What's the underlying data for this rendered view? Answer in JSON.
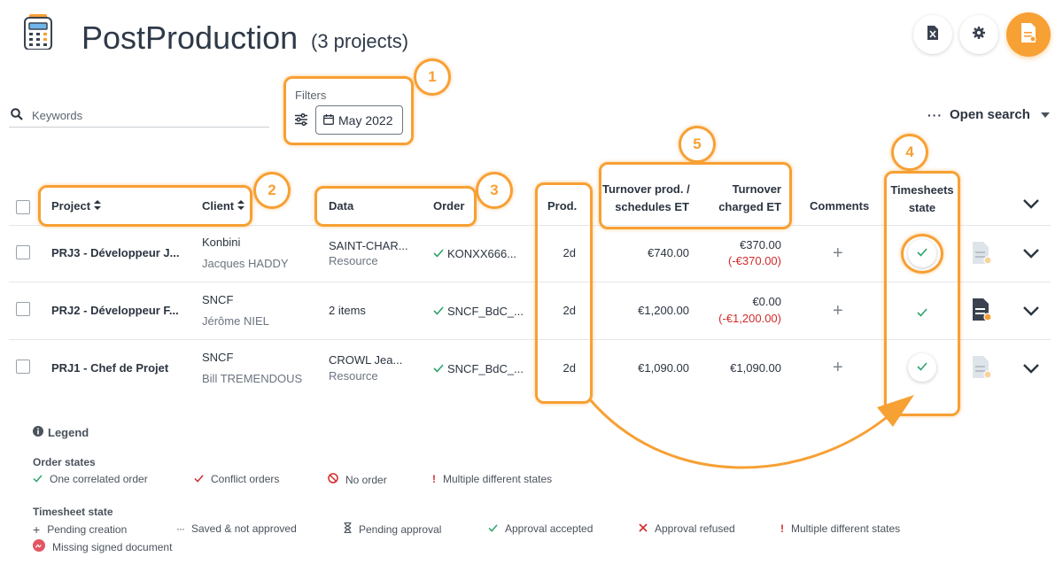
{
  "header": {
    "title": "PostProduction",
    "subtitle": "(3 projects)"
  },
  "toolbar": {
    "search_placeholder": "Keywords",
    "filters_label": "Filters",
    "date_filter": "May 2022",
    "open_search": "Open search"
  },
  "annotations": [
    "1",
    "2",
    "3",
    "4",
    "5"
  ],
  "table": {
    "columns": {
      "project": "Project",
      "client": "Client",
      "data": "Data",
      "order": "Order",
      "prod": "Prod.",
      "turnover_prod_1": "Turnover prod. /",
      "turnover_prod_2": "schedules ET",
      "turnover_charged_1": "Turnover",
      "turnover_charged_2": "charged ET",
      "comments": "Comments",
      "timesheets_1": "Timesheets",
      "timesheets_2": "state"
    },
    "rows": [
      {
        "project": "PRJ3 - Développeur J...",
        "client": "Konbini",
        "contact": "Jacques HADDY",
        "data_main": "SAINT-CHAR...",
        "data_sub": "Resource",
        "order": "KONXX666...",
        "prod": "2d",
        "turnover_prod": "€740.00",
        "charged": "€370.00",
        "charged_diff": "(-€370.00)"
      },
      {
        "project": "PRJ2 - Développeur F...",
        "client": "SNCF",
        "contact": "Jérôme NIEL",
        "data_main": "2 items",
        "data_sub": "",
        "order": "SNCF_BdC_...",
        "prod": "2d",
        "turnover_prod": "€1,200.00",
        "charged": "€0.00",
        "charged_diff": "(-€1,200.00)"
      },
      {
        "project": "PRJ1 - Chef de Projet",
        "client": "SNCF",
        "contact": "Bill TREMENDOUS",
        "data_main": "CROWL Jea...",
        "data_sub": "Resource",
        "order": "SNCF_BdC_...",
        "prod": "2d",
        "turnover_prod": "€1,090.00",
        "charged": "€1,090.00",
        "charged_diff": ""
      }
    ]
  },
  "legend": {
    "title": "Legend",
    "order_states_title": "Order states",
    "order_states": [
      "One correlated order",
      "Conflict orders",
      "No order",
      "Multiple different states"
    ],
    "timesheet_state_title": "Timesheet state",
    "timesheet_states": [
      "Pending creation",
      "Saved & not approved",
      "Pending approval",
      "Approval accepted",
      "Approval refused",
      "Multiple different states",
      "Missing signed document"
    ]
  },
  "colors": {
    "accent": "#f7a034",
    "green": "#2ba36b",
    "red": "#d12b2b",
    "text": "#2b3440"
  }
}
